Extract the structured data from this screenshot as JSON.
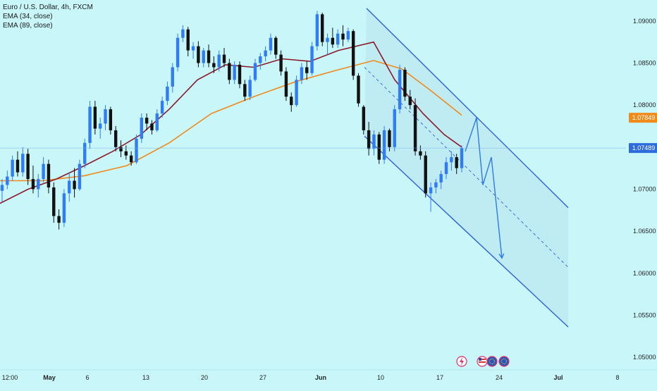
{
  "chart_data": {
    "type": "candlestick",
    "title": "Euro / U.S. Dollar, 4h, FXCM",
    "indicators": [
      {
        "name": "EMA (34, close)",
        "color": "#8b1a2b"
      },
      {
        "name": "EMA (89, close)",
        "color": "#f08a1a"
      }
    ],
    "y_ticks": [
      "1.09000",
      "1.08500",
      "1.08000",
      "1.07500",
      "1.07000",
      "1.06500",
      "1.06000",
      "1.05500",
      "1.05000"
    ],
    "y_tick_values": [
      1.09,
      1.085,
      1.08,
      1.075,
      1.07,
      1.065,
      1.06,
      1.055,
      1.05
    ],
    "x_ticks": [
      "12:00",
      "May",
      "6",
      "13",
      "20",
      "27",
      "Jun",
      "10",
      "17",
      "24",
      "Jul",
      "8"
    ],
    "x_tick_bold": [
      false,
      true,
      false,
      false,
      false,
      false,
      true,
      false,
      false,
      false,
      true,
      false
    ],
    "ylim": [
      1.0485,
      1.0925
    ],
    "price_labels": [
      {
        "text": "1.07849",
        "value": 1.07849,
        "color": "#f08a1a",
        "series": "EMA (89, close)"
      },
      {
        "text": "1.07489",
        "value": 1.07489,
        "color": "#2e6bdc",
        "series": "last"
      }
    ],
    "ema34_path": [
      [
        0,
        1.0683
      ],
      [
        40,
        1.07
      ],
      [
        80,
        1.0712
      ],
      [
        120,
        1.0728
      ],
      [
        160,
        1.0745
      ],
      [
        200,
        1.0765
      ],
      [
        240,
        1.0795
      ],
      [
        280,
        1.083
      ],
      [
        320,
        1.0848
      ],
      [
        360,
        1.0845
      ],
      [
        400,
        1.0855
      ],
      [
        440,
        1.0852
      ],
      [
        480,
        1.0865
      ],
      [
        530,
        1.0875
      ],
      [
        560,
        1.083
      ],
      [
        600,
        1.079
      ],
      [
        630,
        1.0765
      ],
      [
        655,
        1.075
      ]
    ],
    "ema89_path": [
      [
        0,
        1.071
      ],
      [
        60,
        1.071
      ],
      [
        120,
        1.0716
      ],
      [
        180,
        1.0728
      ],
      [
        240,
        1.0755
      ],
      [
        300,
        1.079
      ],
      [
        360,
        1.081
      ],
      [
        420,
        1.0828
      ],
      [
        480,
        1.0842
      ],
      [
        530,
        1.0853
      ],
      [
        570,
        1.0843
      ],
      [
        610,
        1.0818
      ],
      [
        655,
        1.0788
      ]
    ],
    "candles": [
      [
        1.0698,
        1.0712,
        1.0685,
        1.0705
      ],
      [
        1.0705,
        1.0722,
        1.07,
        1.0715
      ],
      [
        1.0715,
        1.074,
        1.071,
        1.0735
      ],
      [
        1.0735,
        1.0745,
        1.0715,
        1.072
      ],
      [
        1.072,
        1.075,
        1.0715,
        1.0742
      ],
      [
        1.0742,
        1.0748,
        1.0705,
        1.0712
      ],
      [
        1.0712,
        1.0728,
        1.0695,
        1.07
      ],
      [
        1.07,
        1.0718,
        1.069,
        1.0712
      ],
      [
        1.0712,
        1.0738,
        1.0708,
        1.073
      ],
      [
        1.073,
        1.0735,
        1.0695,
        1.0702
      ],
      [
        1.0702,
        1.0708,
        1.066,
        1.0668
      ],
      [
        1.0668,
        1.0676,
        1.0652,
        1.066
      ],
      [
        1.066,
        1.07,
        1.0655,
        1.0695
      ],
      [
        1.0695,
        1.072,
        1.0685,
        1.071
      ],
      [
        1.071,
        1.0725,
        1.069,
        1.07
      ],
      [
        1.07,
        1.0735,
        1.0698,
        1.073
      ],
      [
        1.073,
        1.076,
        1.0725,
        1.0755
      ],
      [
        1.0755,
        1.0805,
        1.0748,
        1.0798
      ],
      [
        1.0798,
        1.0805,
        1.0765,
        1.0772
      ],
      [
        1.0772,
        1.0785,
        1.076,
        1.0778
      ],
      [
        1.0778,
        1.08,
        1.077,
        1.0795
      ],
      [
        1.0795,
        1.0798,
        1.0765,
        1.077
      ],
      [
        1.077,
        1.0775,
        1.0745,
        1.075
      ],
      [
        1.075,
        1.0758,
        1.0738,
        1.0745
      ],
      [
        1.0745,
        1.0752,
        1.0735,
        1.074
      ],
      [
        1.074,
        1.0745,
        1.0728,
        1.0732
      ],
      [
        1.0732,
        1.0765,
        1.073,
        1.076
      ],
      [
        1.076,
        1.079,
        1.0755,
        1.0785
      ],
      [
        1.0785,
        1.079,
        1.077,
        1.0778
      ],
      [
        1.0778,
        1.0782,
        1.0765,
        1.077
      ],
      [
        1.077,
        1.0795,
        1.0768,
        1.079
      ],
      [
        1.079,
        1.081,
        1.0785,
        1.0805
      ],
      [
        1.0805,
        1.0828,
        1.08,
        1.0822
      ],
      [
        1.0822,
        1.085,
        1.0815,
        1.0845
      ],
      [
        1.0845,
        1.0885,
        1.084,
        1.088
      ],
      [
        1.088,
        1.0895,
        1.0875,
        1.089
      ],
      [
        1.089,
        1.0893,
        1.0858,
        1.0865
      ],
      [
        1.0865,
        1.0875,
        1.0855,
        1.087
      ],
      [
        1.087,
        1.0876,
        1.0845,
        1.085
      ],
      [
        1.085,
        1.0868,
        1.0845,
        1.0865
      ],
      [
        1.0865,
        1.0872,
        1.0845,
        1.085
      ],
      [
        1.085,
        1.0858,
        1.0838,
        1.0845
      ],
      [
        1.0845,
        1.0865,
        1.084,
        1.086
      ],
      [
        1.086,
        1.0868,
        1.0845,
        1.085
      ],
      [
        1.085,
        1.0855,
        1.0825,
        1.083
      ],
      [
        1.083,
        1.0852,
        1.0825,
        1.0848
      ],
      [
        1.0848,
        1.0852,
        1.082,
        1.0825
      ],
      [
        1.0825,
        1.083,
        1.0805,
        1.081
      ],
      [
        1.081,
        1.0835,
        1.0806,
        1.083
      ],
      [
        1.083,
        1.0855,
        1.0828,
        1.085
      ],
      [
        1.085,
        1.0862,
        1.0842,
        1.0858
      ],
      [
        1.0858,
        1.087,
        1.0852,
        1.0865
      ],
      [
        1.0865,
        1.0885,
        1.086,
        1.088
      ],
      [
        1.088,
        1.0882,
        1.0855,
        1.086
      ],
      [
        1.086,
        1.0865,
        1.0835,
        1.084
      ],
      [
        1.084,
        1.0845,
        1.0805,
        1.081
      ],
      [
        1.081,
        1.0815,
        1.0792,
        1.08
      ],
      [
        1.08,
        1.0835,
        1.0798,
        1.083
      ],
      [
        1.083,
        1.085,
        1.0825,
        1.0845
      ],
      [
        1.0845,
        1.0852,
        1.083,
        1.0838
      ],
      [
        1.0838,
        1.0875,
        1.0835,
        1.087
      ],
      [
        1.087,
        1.0912,
        1.0865,
        1.0908
      ],
      [
        1.0908,
        1.091,
        1.087,
        1.0875
      ],
      [
        1.0875,
        1.0885,
        1.086,
        1.088
      ],
      [
        1.088,
        1.0892,
        1.0868,
        1.0872
      ],
      [
        1.0872,
        1.089,
        1.0868,
        1.0885
      ],
      [
        1.0885,
        1.0895,
        1.087,
        1.0878
      ],
      [
        1.0878,
        1.0892,
        1.0875,
        1.0888
      ],
      [
        1.0888,
        1.089,
        1.083,
        1.0835
      ],
      [
        1.0835,
        1.0838,
        1.0798,
        1.0802
      ],
      [
        1.0798,
        1.08,
        1.0765,
        1.077
      ],
      [
        1.077,
        1.078,
        1.074,
        1.0748
      ],
      [
        1.0748,
        1.077,
        1.074,
        1.0765
      ],
      [
        1.0765,
        1.0768,
        1.073,
        1.0735
      ],
      [
        1.0735,
        1.0775,
        1.073,
        1.077
      ],
      [
        1.077,
        1.0772,
        1.0745,
        1.075
      ],
      [
        1.075,
        1.08,
        1.0745,
        1.0795
      ],
      [
        1.0795,
        1.0848,
        1.079,
        1.0842
      ],
      [
        1.0842,
        1.0845,
        1.0805,
        1.081
      ],
      [
        1.081,
        1.0818,
        1.0795,
        1.08
      ],
      [
        1.08,
        1.0808,
        1.074,
        1.0745
      ],
      [
        1.0745,
        1.0752,
        1.0735,
        1.074
      ],
      [
        1.074,
        1.0745,
        1.069,
        1.0695
      ],
      [
        1.0695,
        1.0708,
        1.0673,
        1.0702
      ],
      [
        1.0702,
        1.0712,
        1.0695,
        1.0708
      ],
      [
        1.0708,
        1.0722,
        1.07,
        1.0718
      ],
      [
        1.0718,
        1.0738,
        1.0712,
        1.0732
      ],
      [
        1.0732,
        1.0745,
        1.0722,
        1.0738
      ],
      [
        1.0738,
        1.0742,
        1.0718,
        1.0725
      ],
      [
        1.0725,
        1.0752,
        1.072,
        1.0749
      ]
    ],
    "channel_upper": [
      [
        520,
        1.0915
      ],
      [
        806,
        1.0678
      ]
    ],
    "channel_lower": [
      [
        517,
        1.0763
      ],
      [
        806,
        1.0536
      ]
    ],
    "channel_mid": [
      [
        517,
        1.0845
      ],
      [
        806,
        1.0607
      ]
    ],
    "forecast_path": [
      [
        660,
        1.0745
      ],
      [
        676,
        1.0785
      ],
      [
        685,
        1.0705
      ],
      [
        697,
        1.0738
      ],
      [
        712,
        1.0618
      ]
    ],
    "event_icons": [
      "lightning-icon",
      "us-flag-icon",
      "eu-flag-icon",
      "eu-flag-icon"
    ]
  }
}
